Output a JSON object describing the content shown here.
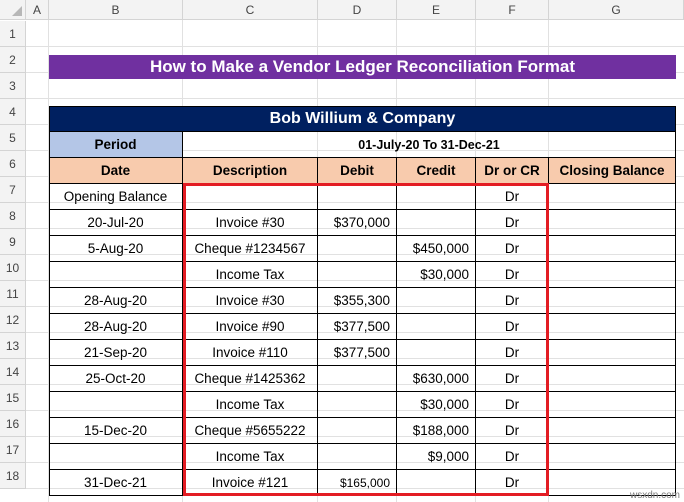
{
  "columns": [
    "A",
    "B",
    "C",
    "D",
    "E",
    "F",
    "G"
  ],
  "rows": [
    "1",
    "2",
    "3",
    "4",
    "5",
    "6",
    "7",
    "8",
    "9",
    "10",
    "11",
    "12",
    "13",
    "14",
    "15",
    "16",
    "17",
    "18"
  ],
  "title": "How to Make a Vendor Ledger Reconciliation Format",
  "company": "Bob Willium & Company",
  "period": {
    "label": "Period",
    "value": "01-July-20 To 31-Dec-21"
  },
  "headers": [
    "Date",
    "Description",
    "Debit",
    "Credit",
    "Dr or CR",
    "Closing Balance"
  ],
  "ledger": [
    {
      "date": "Opening Balance",
      "desc": "",
      "debit": "",
      "credit": "",
      "drcr": "Dr",
      "closing": ""
    },
    {
      "date": "20-Jul-20",
      "desc": "Invoice #30",
      "debit": "$370,000",
      "credit": "",
      "drcr": "Dr",
      "closing": ""
    },
    {
      "date": "5-Aug-20",
      "desc": "Cheque #1234567",
      "debit": "",
      "credit": "$450,000",
      "drcr": "Dr",
      "closing": ""
    },
    {
      "date": "",
      "desc": "Income Tax",
      "debit": "",
      "credit": "$30,000",
      "drcr": "Dr",
      "closing": ""
    },
    {
      "date": "28-Aug-20",
      "desc": "Invoice #30",
      "debit": "$355,300",
      "credit": "",
      "drcr": "Dr",
      "closing": ""
    },
    {
      "date": "28-Aug-20",
      "desc": "Invoice #90",
      "debit": "$377,500",
      "credit": "",
      "drcr": "Dr",
      "closing": ""
    },
    {
      "date": "21-Sep-20",
      "desc": "Invoice #110",
      "debit": "$377,500",
      "credit": "",
      "drcr": "Dr",
      "closing": ""
    },
    {
      "date": "25-Oct-20",
      "desc": "Cheque #1425362",
      "debit": "",
      "credit": "$630,000",
      "drcr": "Dr",
      "closing": ""
    },
    {
      "date": "",
      "desc": "Income Tax",
      "debit": "",
      "credit": "$30,000",
      "drcr": "Dr",
      "closing": ""
    },
    {
      "date": "15-Dec-20",
      "desc": "Cheque #5655222",
      "debit": "",
      "credit": "$188,000",
      "drcr": "Dr",
      "closing": ""
    },
    {
      "date": "",
      "desc": "Income Tax",
      "debit": "",
      "credit": "$9,000",
      "drcr": "Dr",
      "closing": ""
    },
    {
      "date": "31-Dec-21",
      "desc": "Invoice #121",
      "debit": "$165,000",
      "credit": "",
      "drcr": "Dr",
      "closing": ""
    }
  ],
  "watermark": "wsxdn.com",
  "colors": {
    "title_bg": "#7030a0",
    "company_bg": "#002060",
    "header_bg": "#f8cbad",
    "period_bg": "#b4c6e7",
    "highlight": "#e31c23"
  }
}
